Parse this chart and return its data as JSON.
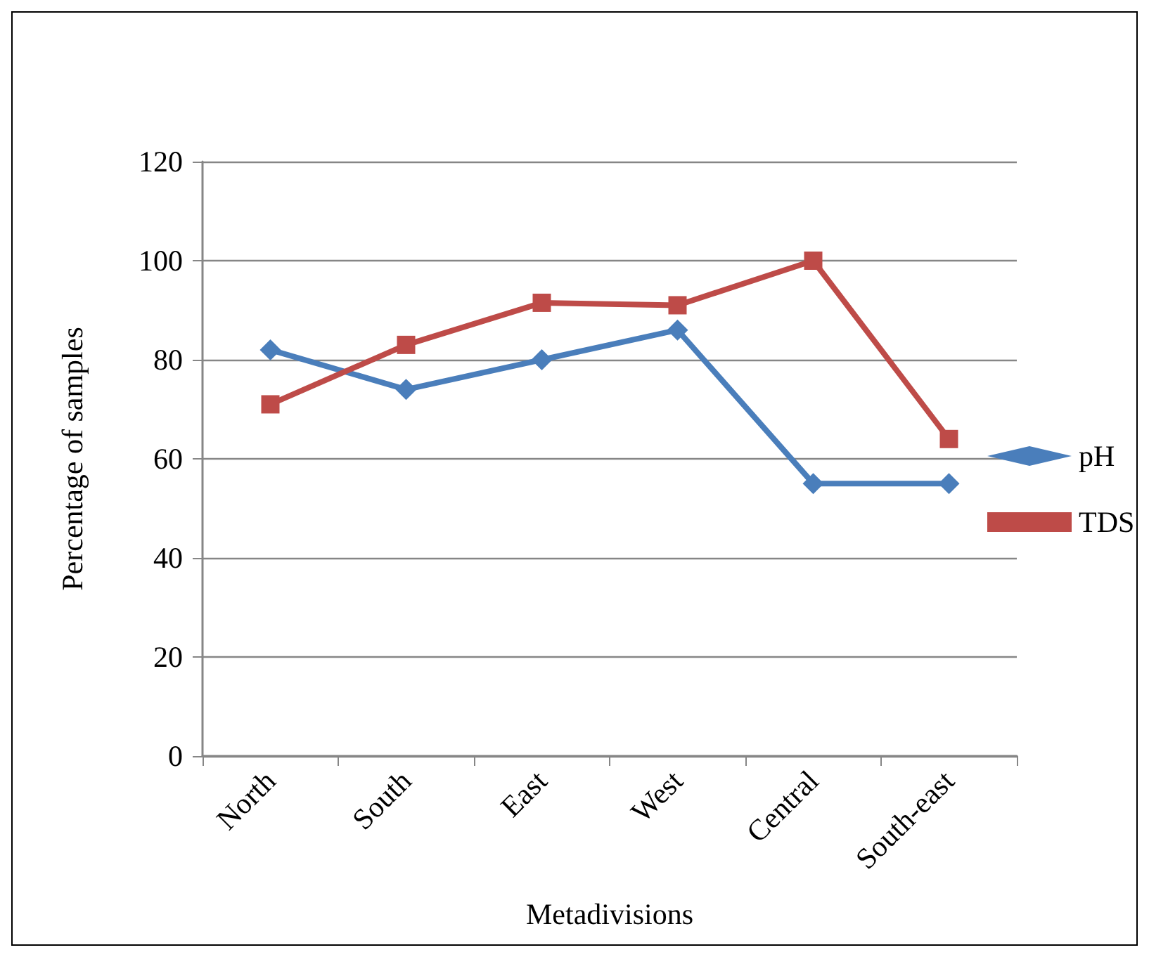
{
  "chart_data": {
    "type": "line",
    "xlabel": "Metadivisions",
    "ylabel": "Percentage of samples",
    "categories": [
      "North",
      "South",
      "East",
      "West",
      "Central",
      "South-east"
    ],
    "series": [
      {
        "name": "pH",
        "color": "#4a7ebb",
        "marker": "diamond",
        "values": [
          82,
          74,
          80,
          86,
          55,
          55
        ]
      },
      {
        "name": "TDS",
        "color": "#be4b48",
        "marker": "square",
        "values": [
          71,
          83,
          91.5,
          91,
          100,
          64
        ]
      }
    ],
    "ylim": [
      0,
      120
    ],
    "yticks": [
      0,
      20,
      40,
      60,
      80,
      100,
      120
    ],
    "grid": "y",
    "legend": "right",
    "line_style": "solid"
  }
}
